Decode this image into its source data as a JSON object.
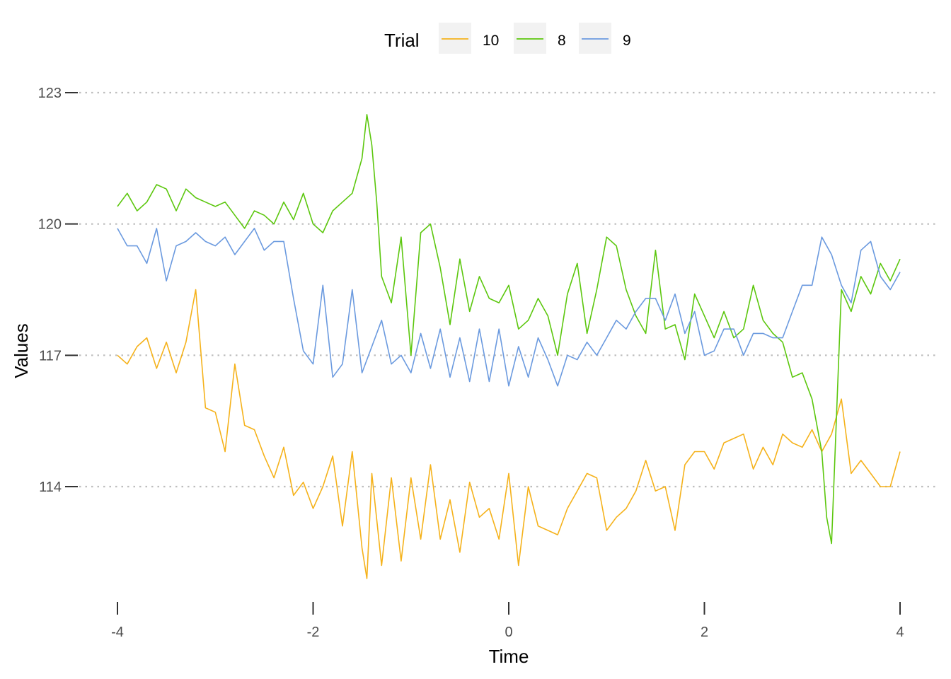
{
  "chart_data": {
    "type": "line",
    "xlabel": "Time",
    "ylabel": "Values",
    "xlim": [
      -4,
      4
    ],
    "ylim": [
      111.5,
      123.6
    ],
    "x_ticks": [
      -4,
      -2,
      0,
      2,
      4
    ],
    "y_ticks": [
      114,
      117,
      120,
      123
    ],
    "x_tick_labels": [
      "-4",
      "-2",
      "0",
      "2",
      "4"
    ],
    "y_tick_labels": [
      "114",
      "117",
      "120",
      "123"
    ],
    "grid": "major-y dotted",
    "legend": {
      "title": "Trial",
      "position": "top",
      "entries": [
        "10",
        "8",
        "9"
      ]
    },
    "series": [
      {
        "name": "10",
        "color": "#F5B21B",
        "x": [
          -4.0,
          -3.9,
          -3.8,
          -3.7,
          -3.6,
          -3.5,
          -3.4,
          -3.3,
          -3.2,
          -3.1,
          -3.0,
          -2.9,
          -2.8,
          -2.7,
          -2.6,
          -2.5,
          -2.4,
          -2.3,
          -2.2,
          -2.1,
          -2.0,
          -1.9,
          -1.8,
          -1.7,
          -1.6,
          -1.5,
          -1.45,
          -1.4,
          -1.3,
          -1.2,
          -1.1,
          -1.0,
          -0.9,
          -0.8,
          -0.7,
          -0.6,
          -0.5,
          -0.4,
          -0.3,
          -0.2,
          -0.1,
          0.0,
          0.1,
          0.2,
          0.3,
          0.4,
          0.5,
          0.6,
          0.7,
          0.8,
          0.9,
          1.0,
          1.1,
          1.2,
          1.3,
          1.4,
          1.5,
          1.6,
          1.7,
          1.8,
          1.9,
          2.0,
          2.1,
          2.2,
          2.3,
          2.4,
          2.5,
          2.6,
          2.7,
          2.8,
          2.9,
          3.0,
          3.1,
          3.2,
          3.3,
          3.4,
          3.5,
          3.6,
          3.7,
          3.8,
          3.9,
          4.0
        ],
        "values": [
          117.0,
          116.8,
          117.2,
          117.4,
          116.7,
          117.3,
          116.6,
          117.3,
          118.5,
          115.8,
          115.7,
          114.8,
          116.8,
          115.4,
          115.3,
          114.7,
          114.2,
          114.9,
          113.8,
          114.1,
          113.5,
          114.0,
          114.7,
          113.1,
          114.8,
          112.6,
          111.9,
          114.3,
          112.2,
          114.2,
          112.3,
          114.2,
          112.8,
          114.5,
          112.8,
          113.7,
          112.5,
          114.1,
          113.3,
          113.5,
          112.8,
          114.3,
          112.2,
          114.0,
          113.1,
          113.0,
          112.9,
          113.5,
          113.9,
          114.3,
          114.2,
          113.0,
          113.3,
          113.5,
          113.9,
          114.6,
          113.9,
          114.0,
          113.0,
          114.5,
          114.8,
          114.8,
          114.4,
          115.0,
          115.1,
          115.2,
          114.4,
          114.9,
          114.5,
          115.2,
          115.0,
          114.9,
          115.3,
          114.8,
          115.2,
          116.0,
          114.3,
          114.6,
          114.3,
          114.0,
          114.0,
          114.8
        ]
      },
      {
        "name": "8",
        "color": "#5CC70E",
        "x": [
          -4.0,
          -3.9,
          -3.8,
          -3.7,
          -3.6,
          -3.5,
          -3.4,
          -3.3,
          -3.2,
          -3.1,
          -3.0,
          -2.9,
          -2.8,
          -2.7,
          -2.6,
          -2.5,
          -2.4,
          -2.3,
          -2.2,
          -2.1,
          -2.0,
          -1.9,
          -1.8,
          -1.7,
          -1.6,
          -1.5,
          -1.45,
          -1.4,
          -1.35,
          -1.3,
          -1.2,
          -1.1,
          -1.0,
          -0.9,
          -0.8,
          -0.7,
          -0.6,
          -0.5,
          -0.4,
          -0.3,
          -0.2,
          -0.1,
          0.0,
          0.1,
          0.2,
          0.3,
          0.4,
          0.5,
          0.6,
          0.7,
          0.8,
          0.9,
          1.0,
          1.1,
          1.2,
          1.3,
          1.4,
          1.5,
          1.6,
          1.7,
          1.8,
          1.9,
          2.0,
          2.1,
          2.2,
          2.3,
          2.4,
          2.5,
          2.6,
          2.7,
          2.8,
          2.9,
          3.0,
          3.1,
          3.2,
          3.25,
          3.3,
          3.4,
          3.5,
          3.6,
          3.7,
          3.8,
          3.9,
          4.0
        ],
        "values": [
          120.4,
          120.7,
          120.3,
          120.5,
          120.9,
          120.8,
          120.3,
          120.8,
          120.6,
          120.5,
          120.4,
          120.5,
          120.2,
          119.9,
          120.3,
          120.2,
          120.0,
          120.5,
          120.1,
          120.7,
          120.0,
          119.8,
          120.3,
          120.5,
          120.7,
          121.5,
          122.5,
          121.8,
          120.5,
          118.8,
          118.2,
          119.7,
          117.0,
          119.8,
          120.0,
          119.0,
          117.7,
          119.2,
          118.0,
          118.8,
          118.3,
          118.2,
          118.6,
          117.6,
          117.8,
          118.3,
          117.9,
          117.0,
          118.4,
          119.1,
          117.5,
          118.5,
          119.7,
          119.5,
          118.5,
          117.9,
          117.5,
          119.4,
          117.6,
          117.7,
          116.9,
          118.4,
          117.9,
          117.4,
          118.0,
          117.4,
          117.6,
          118.6,
          117.8,
          117.5,
          117.3,
          116.5,
          116.6,
          116.0,
          114.8,
          113.3,
          112.7,
          118.5,
          118.0,
          118.8,
          118.4,
          119.1,
          118.7,
          119.2
        ]
      },
      {
        "name": "9",
        "color": "#6B9ADF",
        "x": [
          -4.0,
          -3.9,
          -3.8,
          -3.7,
          -3.6,
          -3.5,
          -3.4,
          -3.3,
          -3.2,
          -3.1,
          -3.0,
          -2.9,
          -2.8,
          -2.7,
          -2.6,
          -2.5,
          -2.4,
          -2.3,
          -2.2,
          -2.1,
          -2.0,
          -1.9,
          -1.8,
          -1.7,
          -1.6,
          -1.5,
          -1.4,
          -1.3,
          -1.2,
          -1.1,
          -1.0,
          -0.9,
          -0.8,
          -0.7,
          -0.6,
          -0.5,
          -0.4,
          -0.3,
          -0.2,
          -0.1,
          0.0,
          0.1,
          0.2,
          0.3,
          0.4,
          0.5,
          0.6,
          0.7,
          0.8,
          0.9,
          1.0,
          1.1,
          1.2,
          1.3,
          1.4,
          1.5,
          1.6,
          1.7,
          1.8,
          1.9,
          2.0,
          2.1,
          2.2,
          2.3,
          2.4,
          2.5,
          2.6,
          2.7,
          2.8,
          2.9,
          3.0,
          3.1,
          3.2,
          3.3,
          3.4,
          3.5,
          3.6,
          3.7,
          3.8,
          3.9,
          4.0
        ],
        "values": [
          119.9,
          119.5,
          119.5,
          119.1,
          119.9,
          118.7,
          119.5,
          119.6,
          119.8,
          119.6,
          119.5,
          119.7,
          119.3,
          119.6,
          119.9,
          119.4,
          119.6,
          119.6,
          118.3,
          117.1,
          116.8,
          118.6,
          116.5,
          116.8,
          118.5,
          116.6,
          117.2,
          117.8,
          116.8,
          117.0,
          116.6,
          117.5,
          116.7,
          117.6,
          116.5,
          117.4,
          116.4,
          117.6,
          116.4,
          117.6,
          116.3,
          117.2,
          116.5,
          117.4,
          116.9,
          116.3,
          117.0,
          116.9,
          117.3,
          117.0,
          117.4,
          117.8,
          117.6,
          118.0,
          118.3,
          118.3,
          117.8,
          118.4,
          117.5,
          118.0,
          117.0,
          117.1,
          117.6,
          117.6,
          117.0,
          117.5,
          117.5,
          117.4,
          117.4,
          118.0,
          118.6,
          118.6,
          119.7,
          119.3,
          118.6,
          118.2,
          119.4,
          119.6,
          118.8,
          118.5,
          118.9
        ]
      }
    ]
  }
}
